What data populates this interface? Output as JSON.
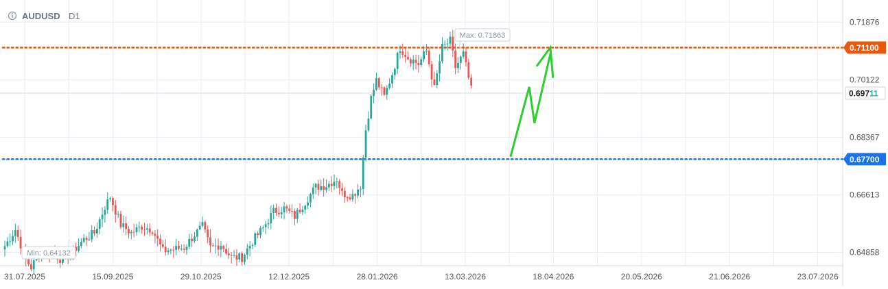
{
  "header": {
    "info_icon": "info-icon",
    "symbol": "AUDUSD",
    "timeframe": "D1"
  },
  "annotations": {
    "max_label": "Max: 0.71863",
    "min_label": "Min: 0.64132"
  },
  "colors": {
    "bull": "#26a69a",
    "bear": "#ef5350",
    "resistance": "#e8590c",
    "support": "#1a73e8",
    "arrow": "#2ecc2e",
    "grid": "#e9edf5",
    "axis_text": "#555555"
  },
  "chart_data": {
    "type": "candlestick",
    "symbol": "AUDUSD",
    "timeframe": "D1",
    "x_tick_labels": [
      "31.07.2025",
      "15.09.2025",
      "29.10.2025",
      "12.12.2025",
      "28.01.2026",
      "13.03.2026",
      "18.04.2026",
      "20.05.2026",
      "21.06.2026",
      "23.07.2026"
    ],
    "y_tick_labels": [
      "0.71876",
      "0.70122",
      "0.68367",
      "0.66613",
      "0.64858"
    ],
    "y_ticks": [
      0.71876,
      0.70122,
      0.68367,
      0.66613,
      0.64858
    ],
    "ylim": [
      0.6445,
      0.7255
    ],
    "grid": true,
    "max": 0.71863,
    "min": 0.64132,
    "current_price": {
      "label_main": "0.697",
      "label_tail": "11",
      "value": 0.69711
    },
    "levels": [
      {
        "name": "resistance",
        "value": 0.711,
        "label": "0.71100"
      },
      {
        "name": "support",
        "value": 0.677,
        "label": "0.67700"
      }
    ],
    "price_path_keyframes": [
      [
        0,
        0.6505
      ],
      [
        4,
        0.6555
      ],
      [
        8,
        0.6465
      ],
      [
        10,
        0.644
      ],
      [
        14,
        0.6495
      ],
      [
        18,
        0.6485
      ],
      [
        22,
        0.646
      ],
      [
        26,
        0.649
      ],
      [
        30,
        0.6525
      ],
      [
        34,
        0.6545
      ],
      [
        38,
        0.6625
      ],
      [
        40,
        0.6655
      ],
      [
        44,
        0.657
      ],
      [
        48,
        0.6545
      ],
      [
        52,
        0.6565
      ],
      [
        56,
        0.6555
      ],
      [
        60,
        0.649
      ],
      [
        64,
        0.6495
      ],
      [
        68,
        0.65
      ],
      [
        72,
        0.654
      ],
      [
        75,
        0.6565
      ],
      [
        78,
        0.65
      ],
      [
        82,
        0.651
      ],
      [
        86,
        0.647
      ],
      [
        90,
        0.647
      ],
      [
        94,
        0.652
      ],
      [
        98,
        0.656
      ],
      [
        102,
        0.661
      ],
      [
        106,
        0.662
      ],
      [
        110,
        0.6595
      ],
      [
        114,
        0.664
      ],
      [
        118,
        0.6685
      ],
      [
        122,
        0.669
      ],
      [
        126,
        0.671
      ],
      [
        128,
        0.6665
      ],
      [
        132,
        0.666
      ],
      [
        135,
        0.669
      ],
      [
        137,
        0.686
      ],
      [
        139,
        0.6955
      ],
      [
        141,
        0.701
      ],
      [
        144,
        0.696
      ],
      [
        147,
        0.703
      ],
      [
        150,
        0.711
      ],
      [
        153,
        0.708
      ],
      [
        157,
        0.706
      ],
      [
        160,
        0.71
      ],
      [
        163,
        0.6985
      ],
      [
        166,
        0.711
      ],
      [
        169,
        0.713
      ],
      [
        171,
        0.705
      ],
      [
        174,
        0.709
      ],
      [
        177,
        0.698
      ]
    ],
    "projection_path": [
      [
        192,
        0.678
      ],
      [
        199,
        0.699
      ],
      [
        201,
        0.688
      ],
      [
        207,
        0.709
      ]
    ],
    "projection_arrowhead": [
      [
        202,
        0.7055
      ],
      [
        207,
        0.711
      ],
      [
        208,
        0.702
      ]
    ]
  }
}
